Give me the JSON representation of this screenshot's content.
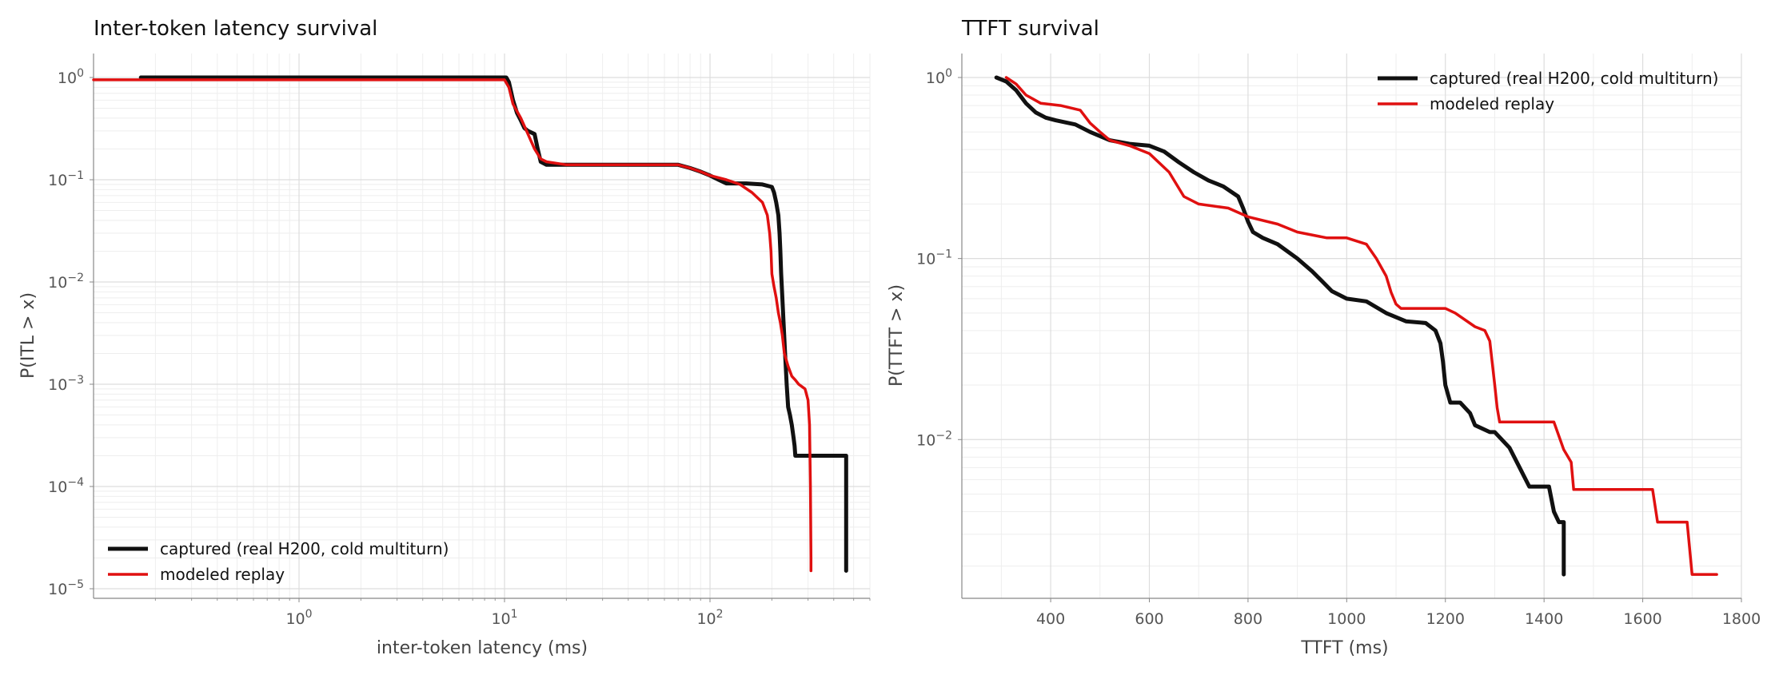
{
  "chart_data": [
    {
      "type": "line",
      "title": "Inter-token latency survival",
      "xlabel": "inter-token latency (ms)",
      "ylabel": "P(ITL > x)",
      "xscale": "log",
      "yscale": "log",
      "xlim": [
        0.1,
        600
      ],
      "ylim": [
        1e-05,
        1
      ],
      "xticks": [
        {
          "value": 1,
          "base": "10",
          "exp": "0"
        },
        {
          "value": 10,
          "base": "10",
          "exp": "1"
        },
        {
          "value": 100,
          "base": "10",
          "exp": "2"
        }
      ],
      "yticks": [
        {
          "value": 1,
          "base": "10",
          "exp": "0"
        },
        {
          "value": 0.1,
          "base": "10",
          "exp": "-1"
        },
        {
          "value": 0.01,
          "base": "10",
          "exp": "-2"
        },
        {
          "value": 0.001,
          "base": "10",
          "exp": "-3"
        },
        {
          "value": 0.0001,
          "base": "10",
          "exp": "-4"
        },
        {
          "value": 1e-05,
          "base": "10",
          "exp": "-5"
        }
      ],
      "grid": true,
      "legend_position": "bottom-left",
      "series": [
        {
          "name": "captured (real H200, cold multiturn)",
          "color": "#111111",
          "x": [
            0.17,
            10.2,
            10.5,
            11,
            11.5,
            12,
            12.5,
            13,
            14,
            14.5,
            15,
            16,
            20,
            40,
            70,
            80,
            90,
            100,
            110,
            120,
            150,
            180,
            200,
            205,
            210,
            215,
            218,
            220,
            222,
            225,
            228,
            232,
            236,
            240,
            245,
            250,
            255,
            258,
            260,
            262,
            265,
            268,
            275,
            280,
            300,
            350,
            400,
            450,
            460,
            460
          ],
          "y": [
            1,
            1,
            0.9,
            0.6,
            0.45,
            0.38,
            0.32,
            0.3,
            0.28,
            0.2,
            0.15,
            0.14,
            0.14,
            0.14,
            0.14,
            0.13,
            0.12,
            0.11,
            0.1,
            0.092,
            0.092,
            0.09,
            0.085,
            0.075,
            0.06,
            0.045,
            0.03,
            0.02,
            0.012,
            0.007,
            0.004,
            0.002,
            0.001,
            0.0006,
            0.0005,
            0.0004,
            0.0003,
            0.00025,
            0.0002,
            0.0002,
            0.0002,
            0.0002,
            0.0002,
            0.0002,
            0.0002,
            0.0002,
            0.0002,
            0.0002,
            0.0002,
            1.5e-05
          ]
        },
        {
          "name": "modeled replay",
          "color": "#e01010",
          "x": [
            0.1,
            10,
            10.5,
            11,
            12,
            13,
            14,
            15,
            16,
            20,
            40,
            70,
            80,
            90,
            100,
            120,
            140,
            160,
            180,
            190,
            195,
            198,
            200,
            205,
            210,
            215,
            220,
            225,
            230,
            240,
            250,
            260,
            270,
            280,
            290,
            300,
            305,
            308,
            310,
            310
          ],
          "y": [
            0.95,
            0.95,
            0.8,
            0.55,
            0.4,
            0.28,
            0.2,
            0.16,
            0.15,
            0.14,
            0.14,
            0.14,
            0.13,
            0.12,
            0.11,
            0.1,
            0.09,
            0.075,
            0.06,
            0.045,
            0.03,
            0.02,
            0.012,
            0.009,
            0.007,
            0.005,
            0.004,
            0.003,
            0.002,
            0.0015,
            0.0012,
            0.0011,
            0.001,
            0.00095,
            0.0009,
            0.0007,
            0.0004,
            0.0001,
            2e-05,
            1.5e-05
          ]
        }
      ]
    },
    {
      "type": "line",
      "title": "TTFT survival",
      "xlabel": "TTFT (ms)",
      "ylabel": "P(TTFT > x)",
      "xscale": "linear",
      "yscale": "log",
      "xlim": [
        220,
        1800
      ],
      "ylim": [
        0.0015,
        1
      ],
      "xticks": [
        400,
        600,
        800,
        1000,
        1200,
        1400,
        1600,
        1800
      ],
      "yticks": [
        {
          "value": 1,
          "base": "10",
          "exp": "0"
        },
        {
          "value": 0.1,
          "base": "10",
          "exp": "-1"
        },
        {
          "value": 0.01,
          "base": "10",
          "exp": "-2"
        }
      ],
      "grid": true,
      "legend_position": "top-right",
      "series": [
        {
          "name": "captured (real H200, cold multiturn)",
          "color": "#111111",
          "x": [
            290,
            310,
            330,
            350,
            370,
            390,
            410,
            450,
            480,
            520,
            560,
            600,
            630,
            660,
            690,
            720,
            750,
            780,
            790,
            800,
            810,
            830,
            860,
            900,
            930,
            950,
            970,
            1000,
            1040,
            1080,
            1120,
            1160,
            1180,
            1190,
            1195,
            1200,
            1210,
            1230,
            1250,
            1260,
            1290,
            1300,
            1330,
            1370,
            1410,
            1420,
            1430,
            1440,
            1440
          ],
          "y": [
            1.0,
            0.95,
            0.85,
            0.72,
            0.64,
            0.6,
            0.58,
            0.55,
            0.5,
            0.45,
            0.43,
            0.42,
            0.39,
            0.34,
            0.3,
            0.27,
            0.25,
            0.22,
            0.19,
            0.16,
            0.14,
            0.13,
            0.12,
            0.1,
            0.085,
            0.075,
            0.066,
            0.06,
            0.058,
            0.05,
            0.045,
            0.044,
            0.04,
            0.034,
            0.027,
            0.02,
            0.016,
            0.016,
            0.014,
            0.012,
            0.011,
            0.011,
            0.009,
            0.0055,
            0.0055,
            0.004,
            0.0035,
            0.0035,
            0.0018
          ]
        },
        {
          "name": "modeled replay",
          "color": "#e01010",
          "x": [
            310,
            330,
            350,
            380,
            420,
            460,
            480,
            500,
            520,
            560,
            600,
            640,
            670,
            700,
            760,
            800,
            860,
            900,
            960,
            1000,
            1040,
            1060,
            1080,
            1090,
            1100,
            1110,
            1200,
            1220,
            1260,
            1280,
            1290,
            1300,
            1305,
            1310,
            1420,
            1440,
            1455,
            1460,
            1620,
            1630,
            1690,
            1700,
            1750
          ],
          "y": [
            1.0,
            0.92,
            0.8,
            0.72,
            0.7,
            0.66,
            0.56,
            0.5,
            0.45,
            0.42,
            0.38,
            0.3,
            0.22,
            0.2,
            0.19,
            0.17,
            0.155,
            0.14,
            0.13,
            0.13,
            0.12,
            0.1,
            0.08,
            0.065,
            0.056,
            0.053,
            0.053,
            0.05,
            0.042,
            0.04,
            0.035,
            0.02,
            0.015,
            0.0125,
            0.0125,
            0.0088,
            0.0075,
            0.0053,
            0.0053,
            0.0035,
            0.0035,
            0.0018,
            0.0018
          ]
        }
      ]
    }
  ]
}
